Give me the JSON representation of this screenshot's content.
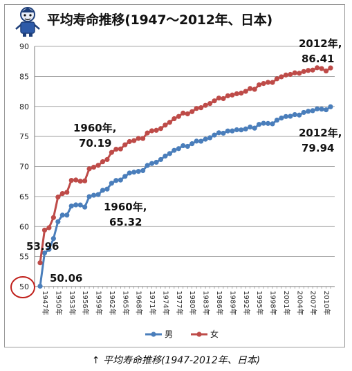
{
  "title": "平均寿命推移(1947～2012年、日本)",
  "caption": "↑ 平均寿命推移(1947-2012年、日本)",
  "chart_data": {
    "type": "line",
    "ylim": [
      50,
      90
    ],
    "yticks": [
      50,
      55,
      60,
      65,
      70,
      75,
      80,
      85,
      90
    ],
    "grid": true,
    "legend_position": "bottom",
    "xtick_labels": [
      "1947年",
      "1950年",
      "1953年",
      "1956年",
      "1959年",
      "1962年",
      "1965年",
      "1968年",
      "1971年",
      "1974年",
      "1977年",
      "1980年",
      "1983年",
      "1986年",
      "1989年",
      "1992年",
      "1995年",
      "1998年",
      "2001年",
      "2004年",
      "2007年",
      "2010年"
    ],
    "x": [
      1947,
      1948,
      1949,
      1950,
      1951,
      1952,
      1953,
      1954,
      1955,
      1956,
      1957,
      1958,
      1959,
      1960,
      1961,
      1962,
      1963,
      1964,
      1965,
      1966,
      1967,
      1968,
      1969,
      1970,
      1971,
      1972,
      1973,
      1974,
      1975,
      1976,
      1977,
      1978,
      1979,
      1980,
      1981,
      1982,
      1983,
      1984,
      1985,
      1986,
      1987,
      1988,
      1989,
      1990,
      1991,
      1992,
      1993,
      1994,
      1995,
      1996,
      1997,
      1998,
      1999,
      2000,
      2001,
      2002,
      2003,
      2004,
      2005,
      2006,
      2007,
      2008,
      2009,
      2010,
      2011,
      2012
    ],
    "series": [
      {
        "name": "男",
        "color": "#4a7ebb",
        "values": [
          50.06,
          55.6,
          56.2,
          58.0,
          60.8,
          61.9,
          61.9,
          63.41,
          63.6,
          63.59,
          63.24,
          64.98,
          65.21,
          65.32,
          66.03,
          66.23,
          67.21,
          67.67,
          67.74,
          68.35,
          68.91,
          69.05,
          69.18,
          69.31,
          70.17,
          70.5,
          70.7,
          71.16,
          71.73,
          72.15,
          72.69,
          72.97,
          73.46,
          73.35,
          73.79,
          74.22,
          74.2,
          74.54,
          74.78,
          75.23,
          75.61,
          75.54,
          75.91,
          75.92,
          76.11,
          76.09,
          76.25,
          76.57,
          76.38,
          77.01,
          77.19,
          77.16,
          77.1,
          77.72,
          78.07,
          78.32,
          78.36,
          78.64,
          78.56,
          79.0,
          79.19,
          79.29,
          79.59,
          79.55,
          79.44,
          79.94
        ]
      },
      {
        "name": "女",
        "color": "#be4b48",
        "values": [
          53.96,
          59.4,
          59.8,
          61.5,
          64.9,
          65.5,
          65.7,
          67.69,
          67.75,
          67.54,
          67.6,
          69.61,
          69.88,
          70.19,
          70.79,
          71.16,
          72.34,
          72.87,
          72.92,
          73.61,
          74.15,
          74.3,
          74.67,
          74.66,
          75.58,
          75.94,
          76.02,
          76.31,
          76.89,
          77.35,
          77.95,
          78.33,
          78.89,
          78.76,
          79.13,
          79.66,
          79.78,
          80.18,
          80.48,
          80.93,
          81.39,
          81.3,
          81.77,
          81.9,
          82.11,
          82.22,
          82.51,
          82.98,
          82.85,
          83.59,
          83.82,
          84.01,
          83.99,
          84.6,
          84.93,
          85.23,
          85.33,
          85.59,
          85.52,
          85.81,
          85.99,
          86.05,
          86.44,
          86.3,
          85.9,
          86.41
        ]
      }
    ],
    "annotations": [
      {
        "text": "53.96"
      },
      {
        "text": "50.06"
      },
      {
        "text": "1960年,",
        "text2": "70.19"
      },
      {
        "text": "1960年,",
        "text2": "65.32"
      },
      {
        "text": "2012年,",
        "text2": "86.41"
      },
      {
        "text": "2012年,",
        "text2": "79.94"
      }
    ]
  }
}
